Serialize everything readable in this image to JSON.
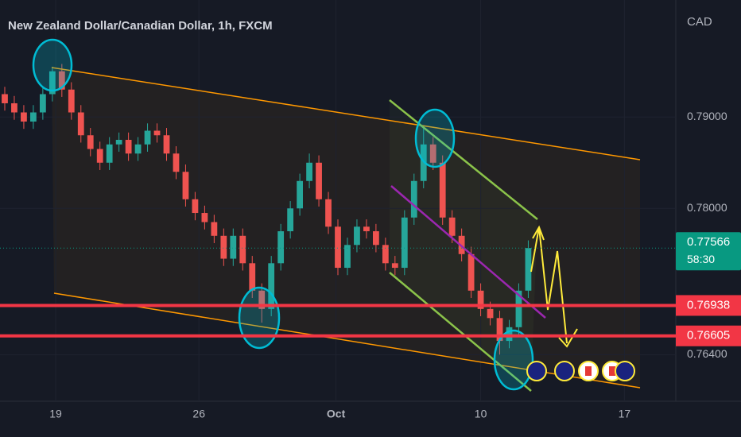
{
  "chart_data": {
    "type": "candlestick",
    "title": "New Zealand Dollar/Canadian Dollar, 1h, FXCM",
    "y_axis_label": "CAD",
    "up_color": "#26a69a",
    "down_color": "#ef5350",
    "open": [
      0.7925,
      0.7915,
      0.7905,
      0.7895,
      0.7905,
      0.7925,
      0.795,
      0.793,
      0.7905,
      0.788,
      0.7865,
      0.785,
      0.787,
      0.7875,
      0.786,
      0.787,
      0.7885,
      0.788,
      0.786,
      0.784,
      0.781,
      0.7795,
      0.7785,
      0.777,
      0.7745,
      0.777,
      0.774,
      0.771,
      0.769,
      0.774,
      0.7775,
      0.78,
      0.783,
      0.785,
      0.781,
      0.778,
      0.7735,
      0.776,
      0.778,
      0.7775,
      0.776,
      0.774,
      0.7735,
      0.779,
      0.783,
      0.787,
      0.785,
      0.779,
      0.777,
      0.775,
      0.771,
      0.769,
      0.768,
      0.7655,
      0.767,
      0.771
    ],
    "high": [
      0.7933,
      0.7923,
      0.7913,
      0.7913,
      0.7933,
      0.7955,
      0.7958,
      0.7938,
      0.7913,
      0.7888,
      0.7873,
      0.7878,
      0.7883,
      0.7883,
      0.7878,
      0.7893,
      0.7893,
      0.7888,
      0.7868,
      0.7848,
      0.7818,
      0.7803,
      0.7793,
      0.7778,
      0.7778,
      0.7778,
      0.7748,
      0.7718,
      0.7748,
      0.7783,
      0.7808,
      0.7838,
      0.786,
      0.7858,
      0.7818,
      0.7788,
      0.7768,
      0.7788,
      0.7788,
      0.7783,
      0.7768,
      0.7748,
      0.7798,
      0.7838,
      0.789,
      0.7878,
      0.7858,
      0.7798,
      0.7778,
      0.7758,
      0.7718,
      0.7698,
      0.7688,
      0.7678,
      0.7718,
      0.7765
    ],
    "low": [
      0.7907,
      0.7897,
      0.7887,
      0.7887,
      0.7897,
      0.7917,
      0.7922,
      0.7897,
      0.7872,
      0.7857,
      0.7842,
      0.7842,
      0.7862,
      0.7852,
      0.7852,
      0.7862,
      0.7872,
      0.7852,
      0.7832,
      0.7802,
      0.7787,
      0.7777,
      0.7762,
      0.7737,
      0.7737,
      0.7732,
      0.7702,
      0.7675,
      0.7682,
      0.7732,
      0.7767,
      0.7792,
      0.7822,
      0.7802,
      0.7772,
      0.7727,
      0.7727,
      0.7752,
      0.7767,
      0.7752,
      0.7732,
      0.7727,
      0.7727,
      0.7782,
      0.7822,
      0.7842,
      0.7782,
      0.7762,
      0.7742,
      0.7702,
      0.7682,
      0.7672,
      0.764,
      0.7647,
      0.7662,
      0.7702
    ],
    "close": [
      0.7915,
      0.7905,
      0.7895,
      0.7905,
      0.7925,
      0.795,
      0.793,
      0.7905,
      0.788,
      0.7865,
      0.785,
      0.787,
      0.7875,
      0.786,
      0.787,
      0.7885,
      0.788,
      0.786,
      0.784,
      0.781,
      0.7795,
      0.7785,
      0.777,
      0.7745,
      0.777,
      0.774,
      0.771,
      0.769,
      0.774,
      0.7775,
      0.78,
      0.783,
      0.785,
      0.781,
      0.778,
      0.7735,
      0.776,
      0.778,
      0.7775,
      0.776,
      0.774,
      0.7735,
      0.779,
      0.783,
      0.787,
      0.785,
      0.779,
      0.777,
      0.775,
      0.771,
      0.769,
      0.768,
      0.7655,
      0.767,
      0.771,
      0.77566
    ],
    "xlim": [
      -0.5,
      70.5
    ],
    "xticks": [
      {
        "value": 5.35,
        "label": "19"
      },
      {
        "value": 20.4,
        "label": "26"
      },
      {
        "value": 34.8,
        "label": "Oct"
      },
      {
        "value": 50.0,
        "label": "10"
      },
      {
        "value": 65.1,
        "label": "17"
      }
    ],
    "ylim": [
      0.7589,
      0.8028
    ],
    "yticks": [
      {
        "value": 0.79,
        "label": "0.79000"
      },
      {
        "value": 0.78,
        "label": "0.78000"
      },
      {
        "value": 0.764,
        "label": "0.76400"
      }
    ],
    "last_price": 0.77566,
    "last_price_color": "#089981",
    "countdown": "58:30",
    "levels": [
      {
        "value": 0.76938,
        "color": "#f23645"
      },
      {
        "value": 0.76605,
        "color": "#f23645"
      }
    ]
  }
}
